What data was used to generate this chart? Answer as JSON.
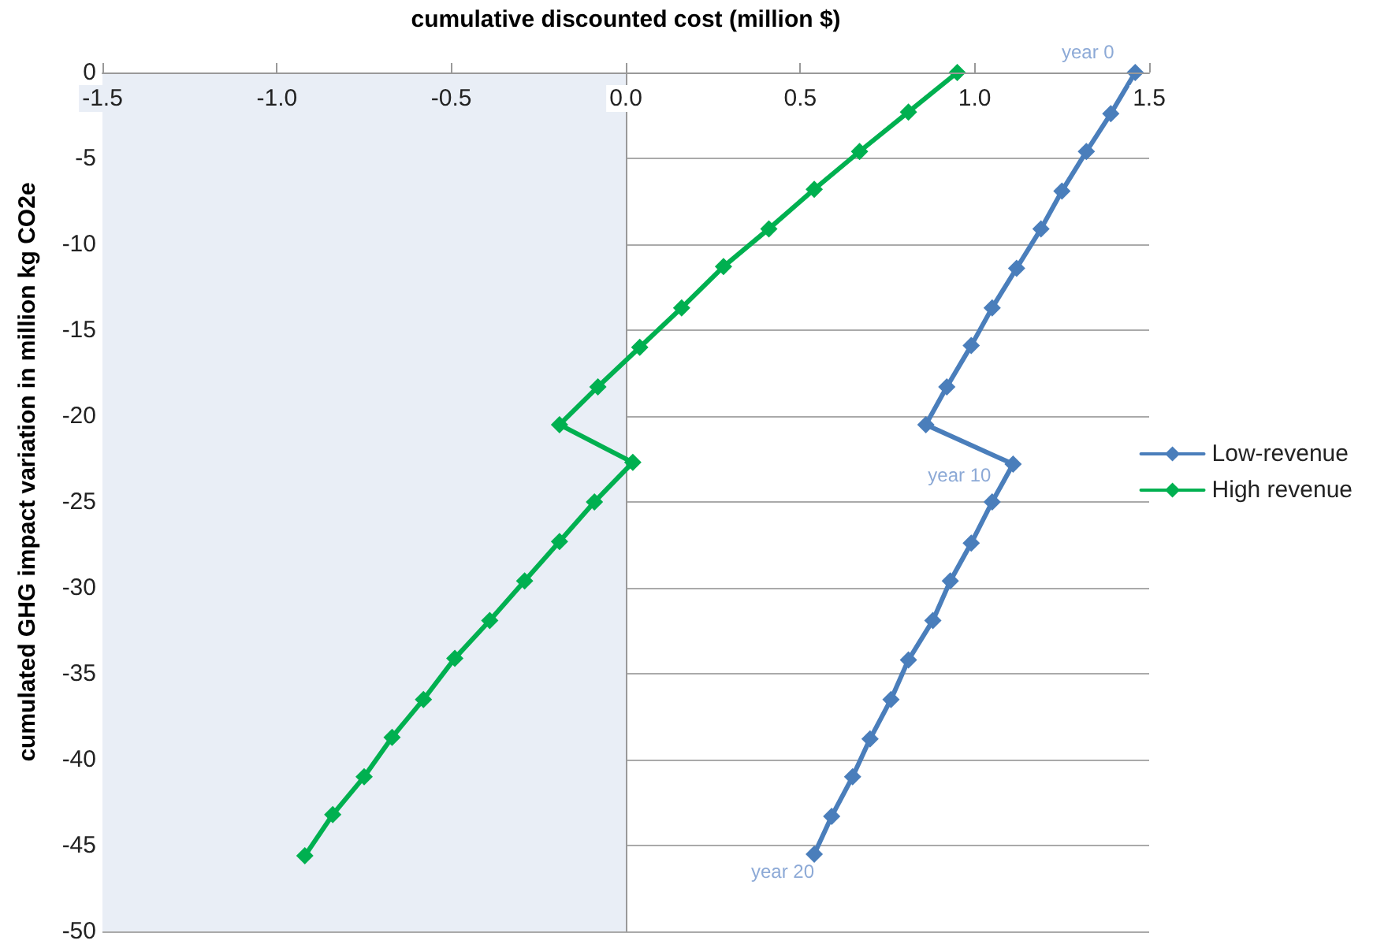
{
  "chart_data": {
    "type": "line",
    "xlabel": "cumulative discounted cost (million $)",
    "ylabel": "cumulated GHG impact variation in million kg CO2e",
    "xlim": [
      -1.5,
      1.5
    ],
    "xticks": [
      -1.5,
      {
        "value": -1,
        "label": "-1.0"
      },
      -0.5,
      {
        "value": 0,
        "label": "0.0"
      },
      0.5,
      {
        "value": 1,
        "label": "1.0"
      },
      1.5
    ],
    "ylim": [
      -50,
      0
    ],
    "yticks": [
      -50,
      -45,
      -40,
      -35,
      -30,
      -25,
      -20,
      -15,
      -10,
      -5,
      0
    ],
    "grid": "y",
    "legend": "right",
    "marker": "diamond",
    "line_style": "solid",
    "bands": [
      {
        "axis": "x",
        "from": -1.5,
        "to": 0,
        "color": "#e9eef6"
      }
    ],
    "annotations": [
      {
        "text": "year 0",
        "x": 1.46,
        "y": 0
      },
      {
        "text": "year 10",
        "x": 1.11,
        "y": -22.8
      },
      {
        "text": "year 20",
        "x": 0.54,
        "y": -45.5
      }
    ],
    "series": [
      {
        "name": "Low-revenue",
        "color": "#4a7ebb",
        "x": [
          1.46,
          1.39,
          1.32,
          1.25,
          1.19,
          1.12,
          1.05,
          0.99,
          0.92,
          0.86,
          1.11,
          1.05,
          0.99,
          0.93,
          0.88,
          0.81,
          0.76,
          0.7,
          0.65,
          0.59,
          0.54
        ],
        "values": [
          0,
          -2.4,
          -4.6,
          -6.9,
          -9.1,
          -11.4,
          -13.7,
          -15.9,
          -18.3,
          -20.5,
          -22.8,
          -25,
          -27.4,
          -29.6,
          -31.9,
          -34.2,
          -36.5,
          -38.8,
          -41,
          -43.3,
          -45.5
        ]
      },
      {
        "name": "High revenue",
        "color": "#00b050",
        "x": [
          0.95,
          0.81,
          0.67,
          0.54,
          0.41,
          0.28,
          0.16,
          0.04,
          -0.08,
          -0.19,
          0.02,
          -0.09,
          -0.19,
          -0.29,
          -0.39,
          -0.49,
          -0.58,
          -0.67,
          -0.75,
          -0.84,
          -0.92
        ],
        "values": [
          0,
          -2.3,
          -4.6,
          -6.8,
          -9.1,
          -11.3,
          -13.7,
          -16,
          -18.3,
          -20.5,
          -22.7,
          -25,
          -27.3,
          -29.6,
          -31.9,
          -34.1,
          -36.5,
          -38.7,
          -41,
          -43.2,
          -45.6
        ]
      }
    ]
  }
}
